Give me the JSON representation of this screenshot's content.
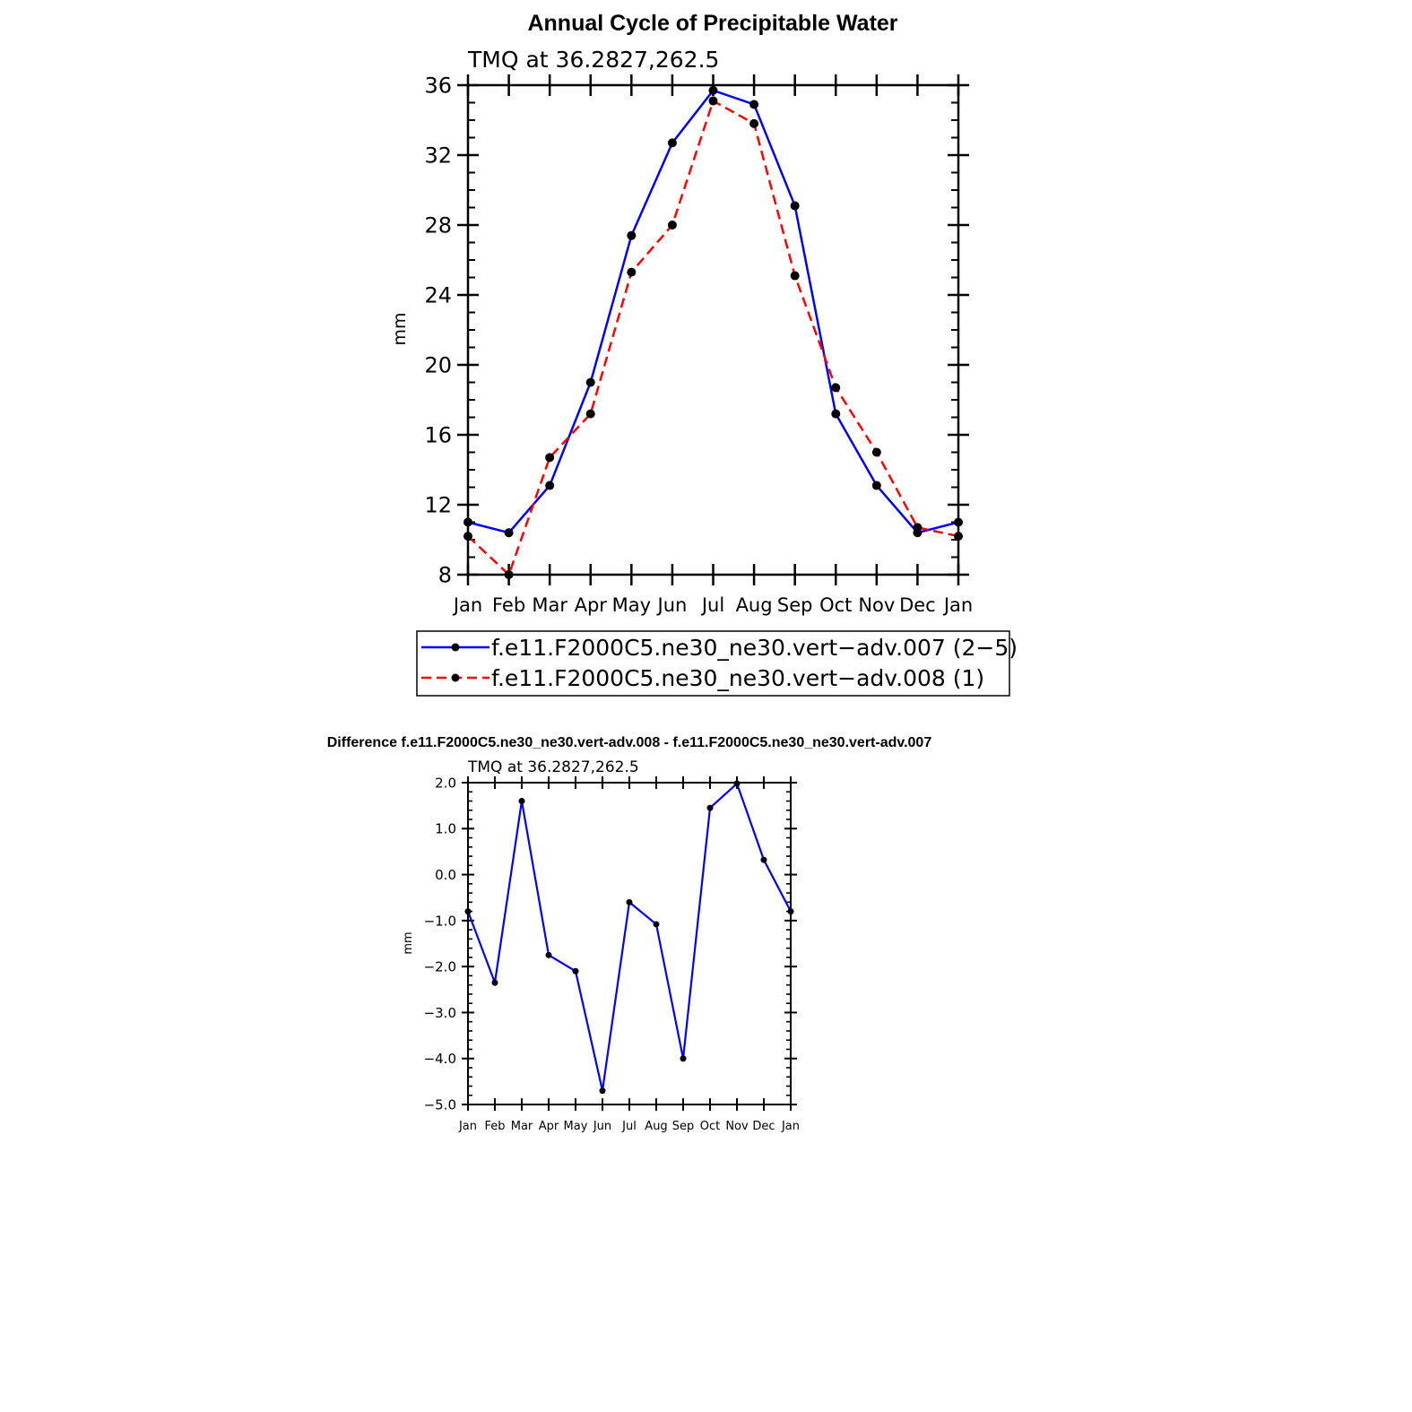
{
  "chart_data": [
    {
      "type": "line",
      "title": "Annual Cycle of Precipitable Water",
      "subtitle": "TMQ  at  36.2827,262.5",
      "ylabel": "mm",
      "xlabel": "",
      "ylim": [
        8,
        36
      ],
      "y_ticks": [
        "8",
        "12",
        "16",
        "20",
        "24",
        "28",
        "32",
        "36"
      ],
      "categories": [
        "Jan",
        "Feb",
        "Mar",
        "Apr",
        "May",
        "Jun",
        "Jul",
        "Aug",
        "Sep",
        "Oct",
        "Nov",
        "Dec",
        "Jan"
      ],
      "series": [
        {
          "name": "f.e11.F2000C5.ne30_ne30.vert−adv.007 (2−5)",
          "color": "#0000ff",
          "dash": "solid",
          "values": [
            11.0,
            10.4,
            13.1,
            19.0,
            27.4,
            32.7,
            35.7,
            34.9,
            29.1,
            17.2,
            13.1,
            10.4,
            11.0
          ]
        },
        {
          "name": "f.e11.F2000C5.ne30_ne30.vert−adv.008 (1)",
          "color": "#ff0000",
          "dash": "dashed",
          "values": [
            10.2,
            8.0,
            14.7,
            17.2,
            25.3,
            28.0,
            35.1,
            33.8,
            25.1,
            18.7,
            15.0,
            10.7,
            10.2
          ]
        }
      ],
      "legend": "bottom"
    },
    {
      "type": "line",
      "title": "Difference f.e11.F2000C5.ne30_ne30.vert-adv.008 - f.e11.F2000C5.ne30_ne30.vert-adv.007",
      "subtitle": "TMQ  at  36.2827,262.5",
      "ylabel": "mm",
      "xlabel": "",
      "ylim": [
        -5.0,
        2.0
      ],
      "y_ticks": [
        "2.0",
        "1.0",
        "0.0",
        "−1.0",
        "−2.0",
        "−3.0",
        "−4.0",
        "−5.0"
      ],
      "categories": [
        "Jan",
        "Feb",
        "Mar",
        "Apr",
        "May",
        "Jun",
        "Jul",
        "Aug",
        "Sep",
        "Oct",
        "Nov",
        "Dec",
        "Jan"
      ],
      "series": [
        {
          "name": "difference",
          "color": "#0000ff",
          "dash": "solid",
          "values": [
            -0.8,
            -2.35,
            1.6,
            -1.75,
            -2.1,
            -4.7,
            -0.6,
            -1.08,
            -4.0,
            1.45,
            1.98,
            0.32,
            -0.8
          ]
        }
      ]
    }
  ]
}
